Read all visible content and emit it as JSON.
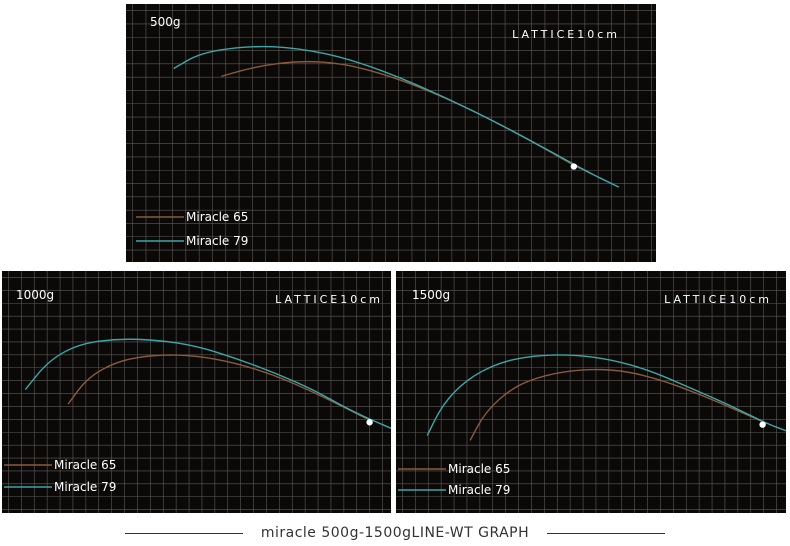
{
  "colors": {
    "background": "#0b0908",
    "grid": "#7a7470",
    "miracle65": "#8a5a3c",
    "miracle79": "#3fa6a6",
    "tip_point": "#ffffff"
  },
  "chart_data": [
    {
      "type": "line",
      "weight_label": "500g",
      "grid_label": "LATTICE10cm",
      "grid": true,
      "legend_position": "bottom-left",
      "series": [
        {
          "name": "Miracle 65",
          "color": "#8a5a3c",
          "points": [
            [
              0.18,
              0.28
            ],
            [
              0.25,
              0.24
            ],
            [
              0.33,
              0.22
            ],
            [
              0.41,
              0.23
            ],
            [
              0.5,
              0.28
            ],
            [
              0.6,
              0.36
            ],
            [
              0.7,
              0.46
            ],
            [
              0.79,
              0.56
            ],
            [
              0.84,
              0.62
            ],
            [
              0.88,
              0.66
            ]
          ]
        },
        {
          "name": "Miracle 79",
          "color": "#3fa6a6",
          "points": [
            [
              0.09,
              0.25
            ],
            [
              0.14,
              0.19
            ],
            [
              0.22,
              0.165
            ],
            [
              0.3,
              0.165
            ],
            [
              0.4,
              0.2
            ],
            [
              0.5,
              0.27
            ],
            [
              0.6,
              0.36
            ],
            [
              0.7,
              0.46
            ],
            [
              0.8,
              0.57
            ],
            [
              0.87,
              0.65
            ],
            [
              0.93,
              0.71
            ]
          ]
        }
      ],
      "tip": [
        0.845,
        0.63
      ]
    },
    {
      "type": "line",
      "weight_label": "1000g",
      "grid_label": "LATTICE10cm",
      "grid": true,
      "legend_position": "bottom-left",
      "series": [
        {
          "name": "Miracle 65",
          "color": "#8a5a3c",
          "points": [
            [
              0.17,
              0.55
            ],
            [
              0.22,
              0.44
            ],
            [
              0.3,
              0.37
            ],
            [
              0.4,
              0.345
            ],
            [
              0.5,
              0.35
            ],
            [
              0.6,
              0.38
            ],
            [
              0.7,
              0.43
            ],
            [
              0.8,
              0.5
            ],
            [
              0.9,
              0.58
            ],
            [
              0.95,
              0.62
            ]
          ]
        },
        {
          "name": "Miracle 79",
          "color": "#3fa6a6",
          "points": [
            [
              0.06,
              0.49
            ],
            [
              0.12,
              0.37
            ],
            [
              0.2,
              0.3
            ],
            [
              0.3,
              0.28
            ],
            [
              0.4,
              0.285
            ],
            [
              0.5,
              0.31
            ],
            [
              0.6,
              0.36
            ],
            [
              0.7,
              0.42
            ],
            [
              0.8,
              0.49
            ],
            [
              0.9,
              0.58
            ],
            [
              1.0,
              0.65
            ]
          ]
        }
      ],
      "tip": [
        0.945,
        0.625
      ]
    },
    {
      "type": "line",
      "weight_label": "1500g",
      "grid_label": "LATTICE10cm",
      "grid": true,
      "legend_position": "bottom-left",
      "series": [
        {
          "name": "Miracle 65",
          "color": "#8a5a3c",
          "points": [
            [
              0.19,
              0.7
            ],
            [
              0.23,
              0.58
            ],
            [
              0.3,
              0.48
            ],
            [
              0.38,
              0.43
            ],
            [
              0.48,
              0.405
            ],
            [
              0.58,
              0.41
            ],
            [
              0.68,
              0.45
            ],
            [
              0.78,
              0.51
            ],
            [
              0.88,
              0.58
            ],
            [
              0.95,
              0.63
            ]
          ]
        },
        {
          "name": "Miracle 79",
          "color": "#3fa6a6",
          "points": [
            [
              0.08,
              0.68
            ],
            [
              0.12,
              0.55
            ],
            [
              0.18,
              0.45
            ],
            [
              0.26,
              0.38
            ],
            [
              0.35,
              0.35
            ],
            [
              0.45,
              0.345
            ],
            [
              0.55,
              0.365
            ],
            [
              0.65,
              0.41
            ],
            [
              0.75,
              0.48
            ],
            [
              0.85,
              0.55
            ],
            [
              0.95,
              0.63
            ],
            [
              1.0,
              0.66
            ]
          ]
        }
      ],
      "tip": [
        0.94,
        0.635
      ]
    }
  ],
  "caption": "miracle 500g-1500gLINE-WT GRAPH"
}
